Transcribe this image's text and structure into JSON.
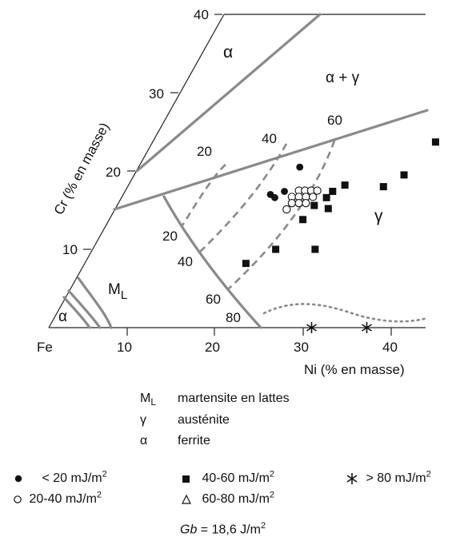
{
  "chart_data": {
    "type": "diagram",
    "axis_labels": {
      "origin": "Fe",
      "x_title": "Ni (% en masse)",
      "y_title": "Cr (% en masse)"
    },
    "x_ticks": [
      10,
      20,
      30,
      40
    ],
    "y_ticks": [
      10,
      20,
      30,
      40
    ],
    "regions": {
      "alpha_top": "α",
      "alpha_gamma": "α + γ",
      "gamma": "γ",
      "ml": "M",
      "ml_sub": "L",
      "alpha_corner": "α"
    },
    "contours": [
      {
        "label": "20",
        "style": "dashed"
      },
      {
        "label": "40",
        "style": "dashed"
      },
      {
        "label": "60",
        "style": "dashed"
      },
      {
        "label": "20",
        "style": "solid"
      },
      {
        "label": "40",
        "style": "solid"
      },
      {
        "label": "60",
        "style": "solid"
      },
      {
        "label": "80",
        "style": "solid"
      }
    ],
    "points": {
      "lt20": [
        [
          18.4,
          20.5
        ],
        [
          16.8,
          17
        ],
        [
          17.5,
          16.6
        ],
        [
          18.2,
          17.4
        ]
      ],
      "m20_40": [
        [
          19.8,
          17.5
        ],
        [
          20.5,
          17.5
        ],
        [
          21.2,
          17.5
        ],
        [
          21.9,
          17.5
        ],
        [
          19.4,
          16.7
        ],
        [
          20.2,
          16.7
        ],
        [
          21,
          16.7
        ],
        [
          21.8,
          16.7
        ],
        [
          19.8,
          15.9
        ],
        [
          20.6,
          15.9
        ],
        [
          21.4,
          15.9
        ],
        [
          19.6,
          15.1
        ]
      ],
      "m40_60": [
        [
          23.7,
          17.4
        ],
        [
          24.7,
          18.2
        ],
        [
          23.4,
          16.6
        ],
        [
          22.5,
          15.6
        ],
        [
          24.3,
          15.2
        ],
        [
          22.1,
          13.8
        ],
        [
          29.2,
          18
        ],
        [
          30.8,
          19.5
        ],
        [
          32.3,
          23.7
        ],
        [
          25.4,
          10
        ],
        [
          20.9,
          10
        ],
        [
          18.4,
          8.2
        ]
      ],
      "gt80": [
        [
          30,
          0
        ],
        [
          36.3,
          0
        ]
      ]
    }
  },
  "phase_legend": [
    {
      "symbol": "M",
      "subscript": "L",
      "text": "martensite en lattes"
    },
    {
      "symbol": "γ",
      "subscript": "",
      "text": "austénite"
    },
    {
      "symbol": "α",
      "subscript": "",
      "text": "ferrite"
    }
  ],
  "marker_legend": [
    {
      "marker": "filled-circle",
      "text": "< 20 mJ/m",
      "sup": "2"
    },
    {
      "marker": "open-circle",
      "text": "20-40 mJ/m",
      "sup": "2"
    },
    {
      "marker": "filled-square",
      "text": "40-60 mJ/m",
      "sup": "2"
    },
    {
      "marker": "open-triangle",
      "text": "60-80 mJ/m",
      "sup": "2"
    },
    {
      "marker": "asterisk",
      "text": "> 80 mJ/m",
      "sup": "2"
    }
  ],
  "gb": {
    "symbol": "Gb",
    "text": "= 18,6 J/m",
    "sup": "2"
  }
}
